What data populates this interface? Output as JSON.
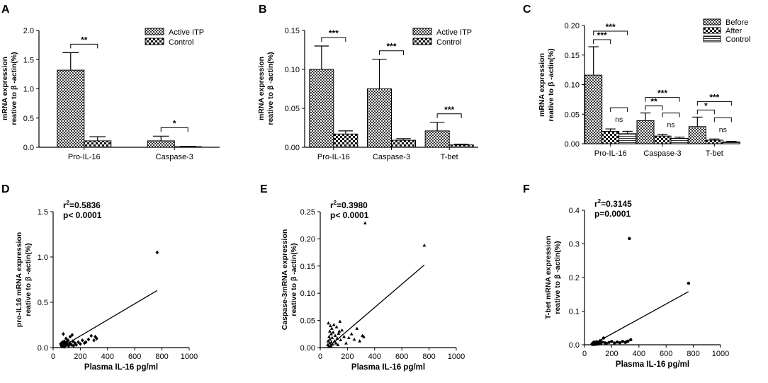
{
  "chart_data": [
    {
      "panel": "A",
      "type": "bar",
      "ylabel_lines": [
        "mRNA expression",
        "reative to β -actin(%)"
      ],
      "ylim": [
        0,
        2.0
      ],
      "yticks": [
        "0.0",
        "0.5",
        "1.0",
        "1.5",
        "2.0"
      ],
      "yticks_values": [
        0,
        0.5,
        1.0,
        1.5,
        2.0
      ],
      "categories": [
        "Pro-IL-16",
        "Caspase-3"
      ],
      "series": [
        {
          "name": "Active ITP",
          "pattern": "checker",
          "values": [
            1.32,
            0.11
          ],
          "errors": [
            0.3,
            0.08
          ]
        },
        {
          "name": "Control",
          "pattern": "dense",
          "values": [
            0.11,
            0.01
          ],
          "errors": [
            0.07,
            0.005
          ]
        }
      ],
      "significance": [
        {
          "label": "**",
          "category": 0
        },
        {
          "label": "*",
          "category": 1
        }
      ],
      "legend": "top-right"
    },
    {
      "panel": "B",
      "type": "bar",
      "ylabel_lines": [
        "mRNA expression",
        "reative to β -actin(%)"
      ],
      "ylim": [
        0,
        0.15
      ],
      "yticks": [
        "0.00",
        "0.05",
        "0.10",
        "0.15"
      ],
      "yticks_values": [
        0,
        0.05,
        0.1,
        0.15
      ],
      "categories": [
        "Pro-IL-16",
        "Caspase-3",
        "T-bet"
      ],
      "series": [
        {
          "name": "Active ITP",
          "pattern": "checker",
          "values": [
            0.1,
            0.075,
            0.021
          ],
          "errors": [
            0.03,
            0.038,
            0.011
          ]
        },
        {
          "name": "Control",
          "pattern": "dense",
          "values": [
            0.017,
            0.009,
            0.003
          ],
          "errors": [
            0.004,
            0.002,
            0.001
          ]
        }
      ],
      "significance": [
        {
          "label": "***",
          "category": 0
        },
        {
          "label": "***",
          "category": 1
        },
        {
          "label": "***",
          "category": 2
        }
      ],
      "legend": "top-right"
    },
    {
      "panel": "C",
      "type": "bar",
      "ylabel_lines": [
        "mRNA expression",
        "reative to β -actin(%)"
      ],
      "ylim": [
        0,
        0.2
      ],
      "yticks": [
        "0.00",
        "0.05",
        "0.10",
        "0.15",
        "0.20"
      ],
      "yticks_values": [
        0,
        0.05,
        0.1,
        0.15,
        0.2
      ],
      "categories": [
        "Pro-IL-16",
        "Caspase-3",
        "T-bet"
      ],
      "series": [
        {
          "name": "Before",
          "pattern": "checker",
          "values": [
            0.116,
            0.039,
            0.029
          ],
          "errors": [
            0.048,
            0.013,
            0.016
          ]
        },
        {
          "name": "After",
          "pattern": "dense",
          "values": [
            0.021,
            0.013,
            0.006
          ],
          "errors": [
            0.004,
            0.003,
            0.002
          ]
        },
        {
          "name": "Control",
          "pattern": "hstripe",
          "values": [
            0.017,
            0.009,
            0.003
          ],
          "errors": [
            0.004,
            0.002,
            0.001
          ]
        }
      ],
      "significance": [
        {
          "label": "***",
          "category": 0,
          "from": 0,
          "to": 2
        },
        {
          "label": "***",
          "category": 0,
          "from": 0,
          "to": 1
        },
        {
          "label": "ns",
          "category": 0,
          "from": 1,
          "to": 2
        },
        {
          "label": "***",
          "category": 1,
          "from": 0,
          "to": 2
        },
        {
          "label": "**",
          "category": 1,
          "from": 0,
          "to": 1
        },
        {
          "label": "ns",
          "category": 1,
          "from": 1,
          "to": 2
        },
        {
          "label": "***",
          "category": 2,
          "from": 0,
          "to": 2
        },
        {
          "label": "*",
          "category": 2,
          "from": 0,
          "to": 1
        },
        {
          "label": "ns",
          "category": 2,
          "from": 1,
          "to": 2
        }
      ],
      "legend": "top-right"
    },
    {
      "panel": "D",
      "type": "scatter",
      "marker": "diamond",
      "xlabel": "Plasma IL-16 pg/ml",
      "ylabel_lines": [
        "pro-IL16 mRNA expression",
        "reative to β -actin(%)"
      ],
      "xlim": [
        0,
        1000
      ],
      "ylim": [
        0,
        1.5
      ],
      "xticks": [
        "0",
        "200",
        "400",
        "600",
        "800",
        "1000"
      ],
      "xticks_values": [
        0,
        200,
        400,
        600,
        800,
        1000
      ],
      "yticks": [
        "0.0",
        "0.5",
        "1.0",
        "1.5"
      ],
      "yticks_values": [
        0,
        0.5,
        1.0,
        1.5
      ],
      "stat_r2": "=0.5836",
      "stat_p": "p< 0.0001",
      "fit": {
        "x": [
          55,
          765
        ],
        "y": [
          0.0,
          0.63
        ]
      },
      "points": [
        [
          55,
          0.04
        ],
        [
          60,
          0.02
        ],
        [
          62,
          0.05
        ],
        [
          65,
          0.01
        ],
        [
          68,
          0.03
        ],
        [
          70,
          0.06
        ],
        [
          72,
          0.02
        ],
        [
          75,
          0.15
        ],
        [
          78,
          0.04
        ],
        [
          80,
          0.01
        ],
        [
          82,
          0.07
        ],
        [
          85,
          0.03
        ],
        [
          88,
          0.05
        ],
        [
          90,
          0.02
        ],
        [
          95,
          0.1
        ],
        [
          98,
          0.04
        ],
        [
          100,
          0.06
        ],
        [
          105,
          0.03
        ],
        [
          110,
          0.08
        ],
        [
          115,
          0.02
        ],
        [
          120,
          0.05
        ],
        [
          125,
          0.12
        ],
        [
          130,
          0.04
        ],
        [
          135,
          0.03
        ],
        [
          140,
          0.14
        ],
        [
          145,
          0.07
        ],
        [
          150,
          0.02
        ],
        [
          160,
          0.05
        ],
        [
          170,
          0.03
        ],
        [
          185,
          0.06
        ],
        [
          200,
          0.04
        ],
        [
          215,
          0.08
        ],
        [
          230,
          0.05
        ],
        [
          240,
          0.06
        ],
        [
          260,
          0.09
        ],
        [
          280,
          0.13
        ],
        [
          300,
          0.08
        ],
        [
          310,
          0.12
        ],
        [
          320,
          0.1
        ],
        [
          765,
          1.05
        ]
      ]
    },
    {
      "panel": "E",
      "type": "scatter",
      "marker": "triangle",
      "xlabel": "Plasma IL-16 pg/ml",
      "ylabel_lines": [
        "Caspase-3mRNA expression",
        "reative to β -actin(%)"
      ],
      "xlim": [
        0,
        1000
      ],
      "ylim": [
        0,
        0.25
      ],
      "xticks": [
        "0",
        "200",
        "400",
        "600",
        "800",
        "1000"
      ],
      "xticks_values": [
        0,
        200,
        400,
        600,
        800,
        1000
      ],
      "yticks": [
        "0.00",
        "0.05",
        "0.10",
        "0.15",
        "0.20",
        "0.25"
      ],
      "yticks_values": [
        0,
        0.05,
        0.1,
        0.15,
        0.2,
        0.25
      ],
      "stat_r2": "=0.3980",
      "stat_p": "p< 0.0001",
      "fit": {
        "x": [
          55,
          765
        ],
        "y": [
          0.0,
          0.152
        ]
      },
      "points": [
        [
          55,
          0.005
        ],
        [
          58,
          0.012
        ],
        [
          60,
          0.045
        ],
        [
          62,
          0.002
        ],
        [
          65,
          0.02
        ],
        [
          68,
          0.008
        ],
        [
          70,
          0.03
        ],
        [
          72,
          0.015
        ],
        [
          75,
          0.04
        ],
        [
          78,
          0.003
        ],
        [
          80,
          0.025
        ],
        [
          82,
          0.01
        ],
        [
          85,
          0.035
        ],
        [
          88,
          0.018
        ],
        [
          90,
          0.006
        ],
        [
          95,
          0.028
        ],
        [
          100,
          0.042
        ],
        [
          105,
          0.012
        ],
        [
          110,
          0.022
        ],
        [
          115,
          0.008
        ],
        [
          120,
          0.038
        ],
        [
          125,
          0.017
        ],
        [
          130,
          0.005
        ],
        [
          135,
          0.026
        ],
        [
          140,
          0.03
        ],
        [
          145,
          0.048
        ],
        [
          150,
          0.014
        ],
        [
          160,
          0.032
        ],
        [
          175,
          0.02
        ],
        [
          190,
          0.008
        ],
        [
          210,
          0.018
        ],
        [
          230,
          0.025
        ],
        [
          250,
          0.015
        ],
        [
          270,
          0.035
        ],
        [
          290,
          0.012
        ],
        [
          310,
          0.022
        ],
        [
          320,
          0.02
        ],
        [
          330,
          0.229
        ],
        [
          765,
          0.188
        ]
      ]
    },
    {
      "panel": "F",
      "type": "scatter",
      "marker": "circle",
      "xlabel": "Plasma IL-16 pg/ml",
      "ylabel_lines": [
        "T-bet mRNA expression",
        "reative to β -actin(%)"
      ],
      "xlim": [
        0,
        1000
      ],
      "ylim": [
        0,
        0.4
      ],
      "xticks": [
        "0",
        "200",
        "400",
        "600",
        "800",
        "1000"
      ],
      "xticks_values": [
        0,
        200,
        400,
        600,
        800,
        1000
      ],
      "yticks": [
        "0.0",
        "0.1",
        "0.2",
        "0.3",
        "0.4"
      ],
      "yticks_values": [
        0,
        0.1,
        0.2,
        0.3,
        0.4
      ],
      "stat_r2": "=0.3145",
      "stat_p": "p=0.0001",
      "fit": {
        "x": [
          55,
          765
        ],
        "y": [
          0.0,
          0.158
        ]
      },
      "points": [
        [
          55,
          0.002
        ],
        [
          60,
          0.004
        ],
        [
          62,
          0.001
        ],
        [
          65,
          0.006
        ],
        [
          68,
          0.003
        ],
        [
          70,
          0.008
        ],
        [
          72,
          0.002
        ],
        [
          75,
          0.005
        ],
        [
          78,
          0.001
        ],
        [
          80,
          0.007
        ],
        [
          85,
          0.003
        ],
        [
          88,
          0.004
        ],
        [
          90,
          0.009
        ],
        [
          95,
          0.002
        ],
        [
          100,
          0.006
        ],
        [
          105,
          0.003
        ],
        [
          110,
          0.005
        ],
        [
          115,
          0.012
        ],
        [
          120,
          0.004
        ],
        [
          130,
          0.008
        ],
        [
          140,
          0.02
        ],
        [
          150,
          0.006
        ],
        [
          160,
          0.004
        ],
        [
          180,
          0.007
        ],
        [
          200,
          0.01
        ],
        [
          220,
          0.005
        ],
        [
          240,
          0.008
        ],
        [
          260,
          0.006
        ],
        [
          280,
          0.01
        ],
        [
          300,
          0.007
        ],
        [
          310,
          0.009
        ],
        [
          320,
          0.011
        ],
        [
          340,
          0.015
        ],
        [
          330,
          0.316
        ],
        [
          765,
          0.183
        ]
      ]
    }
  ]
}
